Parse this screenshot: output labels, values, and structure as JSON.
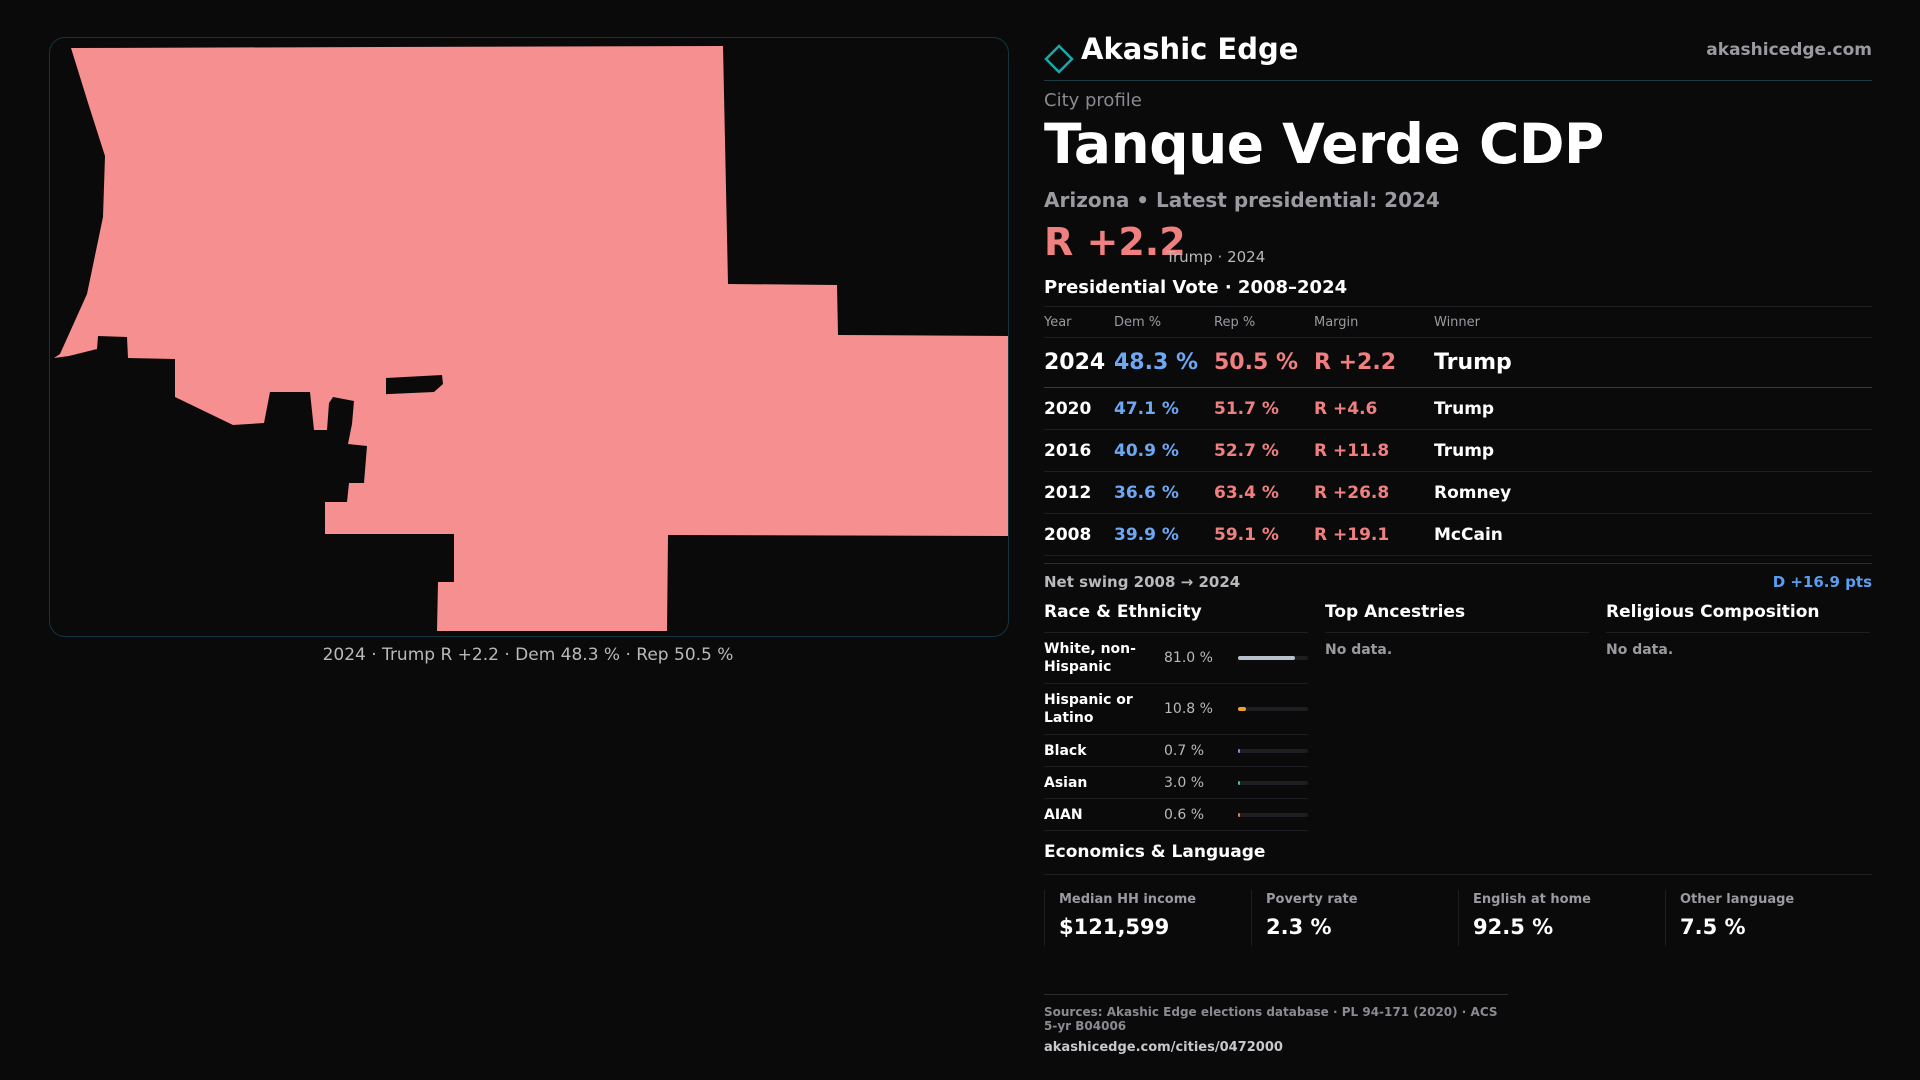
{
  "map": {
    "caption": "2024 · Trump R +2.2 · Dem 48.3 % · Rep 50.5 %",
    "fill_color": "#f68f8f"
  },
  "brand": {
    "name": "Akashic Edge",
    "url": "akashicedge.com",
    "logo_icon": "diamond-outline-icon",
    "accent": "#17a9a9"
  },
  "profile": {
    "kicker": "City profile",
    "title": "Tanque Verde CDP",
    "subtitle": "Arizona • Latest presidential: 2024",
    "margin": "R +2.2",
    "margin_note": "Trump · 2024"
  },
  "vote": {
    "heading": "Presidential Vote · 2008–2024",
    "columns": [
      "Year",
      "Dem %",
      "Rep %",
      "Margin",
      "Winner"
    ],
    "rows": [
      {
        "year": "2024",
        "dem": "48.3 %",
        "rep": "50.5 %",
        "margin": "R +2.2",
        "winner": "Trump"
      },
      {
        "year": "2020",
        "dem": "47.1 %",
        "rep": "51.7 %",
        "margin": "R +4.6",
        "winner": "Trump"
      },
      {
        "year": "2016",
        "dem": "40.9 %",
        "rep": "52.7 %",
        "margin": "R +11.8",
        "winner": "Trump"
      },
      {
        "year": "2012",
        "dem": "36.6 %",
        "rep": "63.4 %",
        "margin": "R +26.8",
        "winner": "Romney"
      },
      {
        "year": "2008",
        "dem": "39.9 %",
        "rep": "59.1 %",
        "margin": "R +19.1",
        "winner": "McCain"
      }
    ],
    "swing_label": "Net swing 2008 → 2024",
    "swing_value": "D +16.9 pts",
    "colors": {
      "dem": "#6ea7f2",
      "rep": "#f08080"
    }
  },
  "race": {
    "heading": "Race & Ethnicity",
    "rows": [
      {
        "label": "White, non-Hispanic",
        "pct": "81.0 %",
        "value": 0.81,
        "color": "#b8c0cc"
      },
      {
        "label": "Hispanic or Latino",
        "pct": "10.8 %",
        "value": 0.108,
        "color": "#f0a030"
      },
      {
        "label": "Black",
        "pct": "0.7 %",
        "value": 0.007,
        "color": "#9b7bea"
      },
      {
        "label": "Asian",
        "pct": "3.0 %",
        "value": 0.03,
        "color": "#2fc6a0"
      },
      {
        "label": "AIAN",
        "pct": "0.6 %",
        "value": 0.006,
        "color": "#e07a50"
      }
    ]
  },
  "ancestries": {
    "heading": "Top Ancestries",
    "empty": "No data."
  },
  "religion": {
    "heading": "Religious Composition",
    "empty": "No data."
  },
  "economics": {
    "heading": "Economics & Language",
    "cells": [
      {
        "label": "Median HH income",
        "value": "$121,599"
      },
      {
        "label": "Poverty rate",
        "value": "2.3 %"
      },
      {
        "label": "English at home",
        "value": "92.5 %"
      },
      {
        "label": "Other language",
        "value": "7.5 %"
      }
    ]
  },
  "sources": {
    "text": "Sources: Akashic Edge elections database · PL 94-171 (2020) · ACS 5-yr B04006",
    "url": "akashicedge.com/cities/0472000"
  }
}
